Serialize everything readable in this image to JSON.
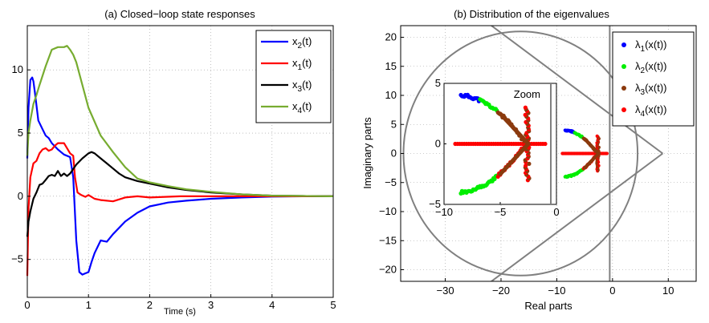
{
  "chart_data": [
    {
      "type": "line",
      "title": "(a) Closed−loop state responses",
      "xlabel": "Time (s)",
      "ylabel": "",
      "xlim": [
        0,
        5
      ],
      "ylim": [
        -8,
        13.5
      ],
      "xticks": [
        "0",
        "1",
        "2",
        "3",
        "4",
        "5"
      ],
      "yticks": [
        "−5",
        "0",
        "5",
        "10"
      ],
      "grid": true,
      "legend_position": "top-right",
      "series": [
        {
          "name": "x2(t)",
          "legend_main": "x",
          "legend_sub": "2",
          "legend_tail": "(t)",
          "color": "#0000ff",
          "x": [
            0,
            0.02,
            0.05,
            0.08,
            0.1,
            0.13,
            0.18,
            0.25,
            0.3,
            0.35,
            0.4,
            0.5,
            0.6,
            0.7,
            0.75,
            0.8,
            0.85,
            0.9,
            0.95,
            1.0,
            1.05,
            1.1,
            1.2,
            1.3,
            1.4,
            1.6,
            1.8,
            2.0,
            2.3,
            2.6,
            3.0,
            3.5,
            4.0,
            4.5,
            5.0
          ],
          "y": [
            3.0,
            7.0,
            9.2,
            9.4,
            9.1,
            8.0,
            6.0,
            5.3,
            4.8,
            4.6,
            4.2,
            3.7,
            3.3,
            3.1,
            1.5,
            -3.5,
            -6.0,
            -6.2,
            -6.1,
            -6.0,
            -5.2,
            -4.5,
            -3.5,
            -3.6,
            -3.0,
            -2.0,
            -1.3,
            -0.8,
            -0.5,
            -0.35,
            -0.2,
            -0.1,
            -0.03,
            0,
            0
          ]
        },
        {
          "name": "x1(t)",
          "legend_main": "x",
          "legend_sub": "1",
          "legend_tail": "(t)",
          "color": "#ff0000",
          "x": [
            0,
            0.02,
            0.05,
            0.1,
            0.15,
            0.2,
            0.25,
            0.3,
            0.35,
            0.4,
            0.45,
            0.5,
            0.55,
            0.6,
            0.65,
            0.7,
            0.75,
            0.78,
            0.82,
            0.88,
            0.95,
            1.0,
            1.1,
            1.2,
            1.4,
            1.6,
            1.8,
            2.0,
            2.5,
            3.0,
            4.0,
            5.0
          ],
          "y": [
            -6.3,
            -1.0,
            1.5,
            2.6,
            2.8,
            3.4,
            3.7,
            3.8,
            3.6,
            3.7,
            4.0,
            4.2,
            4.2,
            4.2,
            3.8,
            3.4,
            3.2,
            1.5,
            0.3,
            0.1,
            -0.05,
            0.1,
            -0.2,
            -0.3,
            -0.4,
            -0.1,
            0,
            -0.1,
            0,
            0,
            0,
            0
          ]
        },
        {
          "name": "x3(t)",
          "legend_main": "x",
          "legend_sub": "3",
          "legend_tail": "(t)",
          "color": "#000000",
          "x": [
            0,
            0.02,
            0.05,
            0.1,
            0.15,
            0.2,
            0.25,
            0.3,
            0.35,
            0.4,
            0.45,
            0.5,
            0.55,
            0.6,
            0.65,
            0.7,
            0.8,
            0.9,
            1.0,
            1.05,
            1.1,
            1.2,
            1.3,
            1.4,
            1.5,
            1.6,
            1.8,
            2.0,
            2.3,
            2.6,
            3.0,
            3.5,
            4.0,
            4.5,
            5.0
          ],
          "y": [
            -3.2,
            -2.0,
            -1.2,
            -0.2,
            0.3,
            0.9,
            1.0,
            1.3,
            1.6,
            1.7,
            1.6,
            2.0,
            1.6,
            1.8,
            1.6,
            1.8,
            2.5,
            3.0,
            3.4,
            3.5,
            3.4,
            3.0,
            2.6,
            2.2,
            1.8,
            1.5,
            1.2,
            1.0,
            0.7,
            0.5,
            0.3,
            0.15,
            0.05,
            0.02,
            0
          ]
        },
        {
          "name": "x4(t)",
          "legend_main": "x",
          "legend_sub": "4",
          "legend_tail": "(t)",
          "color": "#77ac30",
          "x": [
            0,
            0.02,
            0.05,
            0.1,
            0.15,
            0.2,
            0.3,
            0.4,
            0.5,
            0.55,
            0.6,
            0.65,
            0.7,
            0.75,
            0.8,
            0.9,
            1.0,
            1.2,
            1.4,
            1.6,
            1.8,
            2.0,
            2.3,
            2.6,
            3.0,
            3.5,
            4.0,
            4.5,
            5.0
          ],
          "y": [
            3.2,
            5.0,
            6.0,
            7.3,
            8.0,
            8.8,
            10.3,
            11.6,
            11.8,
            11.8,
            11.8,
            11.9,
            11.6,
            11.2,
            10.6,
            8.8,
            7.0,
            4.8,
            3.5,
            2.3,
            1.4,
            1.1,
            0.8,
            0.55,
            0.35,
            0.15,
            0.05,
            0.02,
            0
          ]
        }
      ]
    },
    {
      "type": "scatter",
      "title": "(b) Distribution of the eigenvalues",
      "xlabel": "Real parts",
      "ylabel": "Imaginary parts",
      "xlim": [
        -38,
        15
      ],
      "ylim": [
        -22,
        22
      ],
      "xticks": [
        "−30",
        "−20",
        "−10",
        "0",
        "10"
      ],
      "yticks": [
        "−20",
        "−15",
        "−10",
        "−5",
        "0",
        "5",
        "10",
        "15",
        "20"
      ],
      "grid": true,
      "legend_position": "top-right",
      "series": [
        {
          "name": "λ1(x(t))",
          "legend_main": "λ",
          "legend_sub": "1",
          "legend_tail": "(x(t))",
          "color": "#0000ff"
        },
        {
          "name": "λ2(x(t))",
          "legend_main": "λ",
          "legend_sub": "2",
          "legend_tail": "(x(t))",
          "color": "#00ee00"
        },
        {
          "name": "λ3(x(t))",
          "legend_main": "λ",
          "legend_sub": "3",
          "legend_tail": "(x(t))",
          "color": "#8b3a0e"
        },
        {
          "name": "λ4(x(t))",
          "legend_main": "λ",
          "legend_sub": "4",
          "legend_tail": "(x(t))",
          "color": "#ff0000"
        }
      ],
      "region": {
        "circle_center": [
          -16.5,
          0
        ],
        "circle_radius": 21,
        "vertical_line_x": -0.5,
        "wedge_apex": [
          9,
          0
        ],
        "color": "#808080"
      },
      "inset": {
        "label": "Zoom",
        "xlim": [
          -10,
          0
        ],
        "ylim": [
          -5,
          5
        ],
        "xticks": [
          "−10",
          "−5",
          "0"
        ],
        "yticks": [
          "−5",
          "0",
          "5"
        ]
      }
    }
  ]
}
